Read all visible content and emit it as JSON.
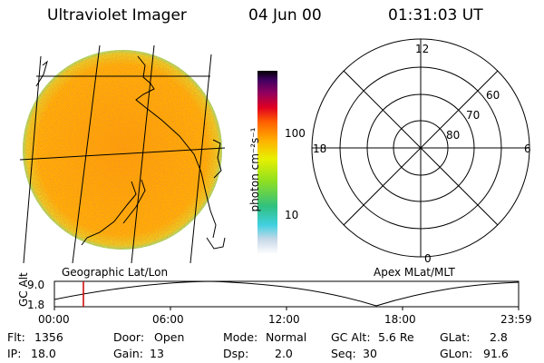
{
  "header": {
    "instrument": "Ultraviolet Imager",
    "date": "04 Jun 00",
    "time": "01:31:03 UT"
  },
  "colorbar": {
    "unit_label": "photon cm⁻²s⁻¹",
    "ticks": [
      "100",
      "10"
    ]
  },
  "polar_grid": {
    "mlt_labels": {
      "top": "12",
      "left": "18",
      "right": "6",
      "bottom": "0"
    },
    "lat_labels": [
      "60",
      "70",
      "80"
    ]
  },
  "map_labels": {
    "left": "Geographic Lat/Lon",
    "right": "Apex MLat/MLT"
  },
  "timeline": {
    "ylabel": "GC Alt",
    "y_ticks": [
      "9.0",
      "1.8"
    ],
    "x_ticks": [
      "00:00",
      "06:00",
      "12:00",
      "18:00",
      "23:59"
    ],
    "current_marker_time": "01:31"
  },
  "status": {
    "flt": {
      "label": "Flt:",
      "value": "1356"
    },
    "ip": {
      "label": "IP:",
      "value": "18.0"
    },
    "door": {
      "label": "Door:",
      "value": "Open"
    },
    "gain": {
      "label": "Gain:",
      "value": "13"
    },
    "mode": {
      "label": "Mode:",
      "value": "Normal"
    },
    "dsp": {
      "label": "Dsp:",
      "value": "2.0"
    },
    "gcalt": {
      "label": "GC Alt:",
      "value": "5.6 Re"
    },
    "seq": {
      "label": "Seq:",
      "value": "30"
    },
    "glat": {
      "label": "GLat:",
      "value": "2.8"
    },
    "glon": {
      "label": "GLon:",
      "value": "91.6"
    }
  },
  "colors": {
    "image_base": "#ffa500",
    "marker": "#cc0000"
  }
}
